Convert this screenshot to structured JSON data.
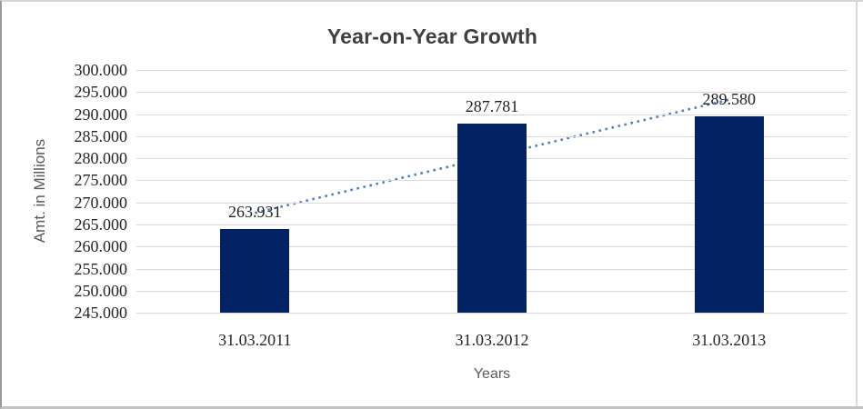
{
  "chart_data": {
    "type": "bar",
    "title": "Year-on-Year Growth",
    "xlabel": "Years",
    "ylabel": "Amt. in Millions",
    "categories": [
      "31.03.2011",
      "31.03.2012",
      "31.03.2013"
    ],
    "values": [
      263.931,
      287.781,
      289.58
    ],
    "value_labels": [
      "263.931",
      "287.781",
      "289.580"
    ],
    "ylim": [
      245,
      300
    ],
    "ytick_step": 5,
    "ytick_labels": [
      "300.000",
      "295.000",
      "290.000",
      "285.000",
      "280.000",
      "275.000",
      "270.000",
      "265.000",
      "260.000",
      "255.000",
      "250.000",
      "245.000"
    ],
    "grid": true,
    "legend_position": "none",
    "trendline": {
      "kind": "linear",
      "style": "dotted"
    },
    "colors": {
      "bar": "#032264",
      "gridline": "#d9d9d9",
      "trendline": "#4e80c0",
      "title_text": "#404040",
      "tick_text": "#262626",
      "data_label_text": "#1f1f1f",
      "axis_title_text": "#595959",
      "chart_edge": "#d9d9d9"
    }
  }
}
